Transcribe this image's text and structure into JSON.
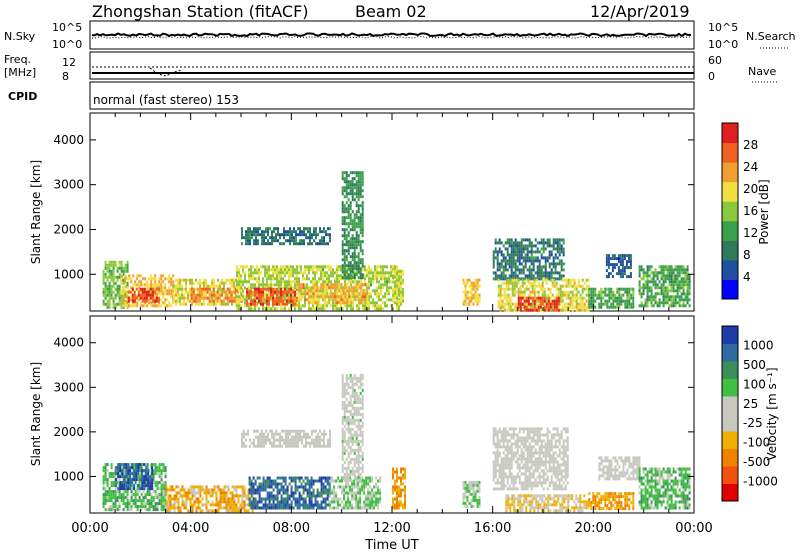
{
  "header": {
    "station": "Zhongshan Station (fitACF)",
    "beam": "Beam 02",
    "date": "12/Apr/2019"
  },
  "strip_labels": {
    "nsky": "N.Sky",
    "nsky_ticks": [
      "10^5",
      "10^0"
    ],
    "nsearch": "N.Search",
    "nsearch_ticks": [
      "10^5",
      "10^0"
    ],
    "freq": [
      "Freq.",
      "[MHz]"
    ],
    "freq_ticks": [
      "12",
      "8"
    ],
    "nave": "Nave",
    "nave_ticks": [
      "60",
      "0"
    ],
    "cpid": "CPID",
    "mode": "normal (fast stereo) 153"
  },
  "colors": {
    "power": [
      "#0000ff",
      "#1e4fa0",
      "#2f7a5a",
      "#3aa04a",
      "#8cc83c",
      "#f0e040",
      "#f0a030",
      "#f06020",
      "#e02020"
    ],
    "velocity": [
      "#e00000",
      "#f05010",
      "#f08000",
      "#f0b000",
      "#c8c8c0",
      "#c8c8c0",
      "#40c040",
      "#3a8f5a",
      "#2f6aa0",
      "#1e3ca8"
    ]
  },
  "chart_data": [
    {
      "type": "heatmap",
      "panel": "power",
      "xlabel": "",
      "ylabel": "Slant Range [km]",
      "yticks": [
        1000,
        2000,
        3000,
        4000
      ],
      "ylim": [
        180,
        4600
      ],
      "xlim_hours": [
        0,
        24
      ],
      "colorbar_label": "Power [dB]",
      "colorbar_ticks": [
        "4",
        "8",
        "12",
        "16",
        "20",
        "24",
        "28"
      ],
      "colorbar_range": [
        0,
        30
      ],
      "patches": [
        {
          "t0": 0.5,
          "t1": 1.5,
          "r0": 250,
          "r1": 1300,
          "value": 14
        },
        {
          "t0": 1.2,
          "t1": 3.3,
          "r0": 300,
          "r1": 1000,
          "value": 20
        },
        {
          "t0": 1.5,
          "t1": 2.7,
          "r0": 400,
          "r1": 700,
          "value": 26
        },
        {
          "t0": 3.3,
          "t1": 5.8,
          "r0": 300,
          "r1": 900,
          "value": 18
        },
        {
          "t0": 4.0,
          "t1": 6.0,
          "r0": 400,
          "r1": 700,
          "value": 23
        },
        {
          "t0": 5.8,
          "t1": 12.3,
          "r0": 250,
          "r1": 1200,
          "value": 16
        },
        {
          "t0": 6.2,
          "t1": 8.2,
          "r0": 350,
          "r1": 700,
          "value": 25
        },
        {
          "t0": 8.2,
          "t1": 11.0,
          "r0": 350,
          "r1": 800,
          "value": 21
        },
        {
          "t0": 6.0,
          "t1": 9.5,
          "r0": 1700,
          "r1": 2050,
          "value": 8
        },
        {
          "t0": 10.0,
          "t1": 10.8,
          "r0": 900,
          "r1": 3300,
          "value": 10
        },
        {
          "t0": 12.0,
          "t1": 12.4,
          "r0": 300,
          "r1": 1100,
          "value": 17
        },
        {
          "t0": 14.8,
          "t1": 15.5,
          "r0": 300,
          "r1": 900,
          "value": 20
        },
        {
          "t0": 16.0,
          "t1": 18.8,
          "r0": 900,
          "r1": 1800,
          "value": 8
        },
        {
          "t0": 16.2,
          "t1": 19.8,
          "r0": 200,
          "r1": 900,
          "value": 18
        },
        {
          "t0": 17.0,
          "t1": 18.6,
          "r0": 200,
          "r1": 500,
          "value": 27
        },
        {
          "t0": 19.8,
          "t1": 21.6,
          "r0": 280,
          "r1": 700,
          "value": 12
        },
        {
          "t0": 21.8,
          "t1": 23.8,
          "r0": 300,
          "r1": 1200,
          "value": 12
        },
        {
          "t0": 20.5,
          "t1": 21.5,
          "r0": 950,
          "r1": 1450,
          "value": 6
        }
      ]
    },
    {
      "type": "heatmap",
      "panel": "velocity",
      "xlabel": "Time UT",
      "ylabel": "Slant Range [km]",
      "yticks": [
        1000,
        2000,
        3000,
        4000
      ],
      "ylim": [
        180,
        4600
      ],
      "xlim_hours": [
        0,
        24
      ],
      "xticks": [
        "00:00",
        "04:00",
        "08:00",
        "12:00",
        "16:00",
        "20:00",
        "00:00"
      ],
      "colorbar_label": "Velocity [m s⁻¹]",
      "colorbar_ticks": [
        "-1000",
        "-500",
        "-100",
        "-25",
        "25",
        "100",
        "500",
        "1000"
      ],
      "colorbar_range": [
        -1000,
        1000
      ],
      "patches": [
        {
          "t0": 0.5,
          "t1": 3.0,
          "r0": 250,
          "r1": 1300,
          "value": 300
        },
        {
          "t0": 1.0,
          "t1": 2.5,
          "r0": 700,
          "r1": 1300,
          "value": 800
        },
        {
          "t0": 3.0,
          "t1": 6.5,
          "r0": 250,
          "r1": 800,
          "value": -300
        },
        {
          "t0": 6.3,
          "t1": 9.5,
          "r0": 300,
          "r1": 1000,
          "value": 700
        },
        {
          "t0": 9.5,
          "t1": 11.5,
          "r0": 300,
          "r1": 1000,
          "value": 200
        },
        {
          "t0": 6.0,
          "t1": 9.5,
          "r0": 1700,
          "r1": 2050,
          "value": 0
        },
        {
          "t0": 10.0,
          "t1": 10.8,
          "r0": 900,
          "r1": 3300,
          "value": 50
        },
        {
          "t0": 12.0,
          "t1": 12.5,
          "r0": 300,
          "r1": 1200,
          "value": -400
        },
        {
          "t0": 14.8,
          "t1": 15.5,
          "r0": 300,
          "r1": 900,
          "value": 150
        },
        {
          "t0": 16.0,
          "t1": 19.0,
          "r0": 700,
          "r1": 2100,
          "value": 0
        },
        {
          "t0": 16.5,
          "t1": 19.8,
          "r0": 200,
          "r1": 600,
          "value": -200
        },
        {
          "t0": 19.8,
          "t1": 21.6,
          "r0": 250,
          "r1": 650,
          "value": -400
        },
        {
          "t0": 20.2,
          "t1": 21.8,
          "r0": 950,
          "r1": 1450,
          "value": 0
        },
        {
          "t0": 21.8,
          "t1": 23.8,
          "r0": 300,
          "r1": 1200,
          "value": 300
        }
      ]
    }
  ]
}
